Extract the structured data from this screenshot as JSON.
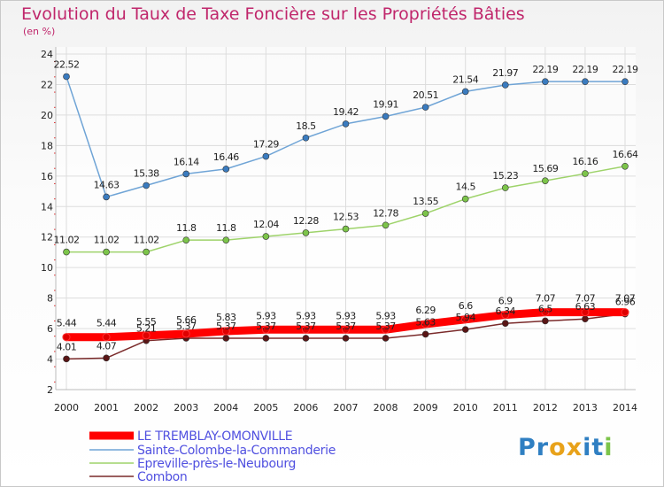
{
  "chart_data": {
    "type": "line",
    "title": "Evolution du Taux de Taxe Foncière sur les Propriétés Bâties",
    "subtitle": "(en %)",
    "x": [
      "2000",
      "2001",
      "2002",
      "2003",
      "2004",
      "2005",
      "2006",
      "2007",
      "2008",
      "2009",
      "2010",
      "2011",
      "2012",
      "2013",
      "2014"
    ],
    "ylim": [
      2,
      24
    ],
    "yticks": [
      2,
      4,
      6,
      8,
      10,
      12,
      14,
      16,
      18,
      20,
      22,
      24
    ],
    "grid": true,
    "legend_position": "bottom-left",
    "series": [
      {
        "name": "LE TREMBLAY-OMONVILLE",
        "color": "#ff0000",
        "point_color": "#e00000",
        "values": [
          5.44,
          5.44,
          5.55,
          5.66,
          5.83,
          5.93,
          5.93,
          5.93,
          5.93,
          6.29,
          6.6,
          6.9,
          7.07,
          7.07,
          7.07
        ],
        "labels": [
          "5.44",
          "5.44",
          "5.55",
          "5.66",
          "5.83",
          "5.93",
          "5.93",
          "5.93",
          "5.93",
          "6.29",
          "6.6",
          "6.9",
          "7.07",
          "7.07",
          "7.07"
        ]
      },
      {
        "name": "Sainte-Colombe-la-Commanderie",
        "color": "#6fa4d6",
        "point_color": "#3a7bbf",
        "values": [
          22.52,
          14.63,
          15.38,
          16.14,
          16.46,
          17.29,
          18.5,
          19.42,
          19.91,
          20.51,
          21.54,
          21.97,
          22.19,
          22.19,
          22.19
        ],
        "labels": [
          "22.52",
          "14.63",
          "15.38",
          "16.14",
          "16.46",
          "17.29",
          "18.5",
          "19.42",
          "19.91",
          "20.51",
          "21.54",
          "21.97",
          "22.19",
          "22.19",
          "22.19"
        ]
      },
      {
        "name": "Epreville-près-le-Neubourg",
        "color": "#9ed36a",
        "point_color": "#7cc44a",
        "values": [
          11.02,
          11.02,
          11.02,
          11.8,
          11.8,
          12.04,
          12.28,
          12.53,
          12.78,
          13.55,
          14.5,
          15.23,
          15.69,
          16.16,
          16.64
        ],
        "labels": [
          "11.02",
          "11.02",
          "11.02",
          "11.8",
          "11.8",
          "12.04",
          "12.28",
          "12.53",
          "12.78",
          "13.55",
          "14.5",
          "15.23",
          "15.69",
          "16.16",
          "16.64"
        ]
      },
      {
        "name": "Combon",
        "color": "#7a2a2a",
        "point_color": "#5a1515",
        "values": [
          4.01,
          4.07,
          5.21,
          5.37,
          5.37,
          5.37,
          5.37,
          5.37,
          5.37,
          5.63,
          5.94,
          6.34,
          6.5,
          6.63,
          6.96
        ],
        "labels": [
          "4.01",
          "4.07",
          "5.21",
          "5.37",
          "5.37",
          "5.37",
          "5.37",
          "5.37",
          "5.37",
          "5.63",
          "5.94",
          "6.34",
          "6.5",
          "6.63",
          "6.96"
        ]
      }
    ]
  },
  "logo": {
    "text": "Proxiti",
    "letters": [
      "P",
      "r",
      "o",
      "x",
      "i",
      "t",
      "i"
    ],
    "colors": [
      "#2f7fc2",
      "#2f7fc2",
      "#e8a21a",
      "#e8a21a",
      "#2f7fc2",
      "#2f7fc2",
      "#7cc44a"
    ]
  }
}
